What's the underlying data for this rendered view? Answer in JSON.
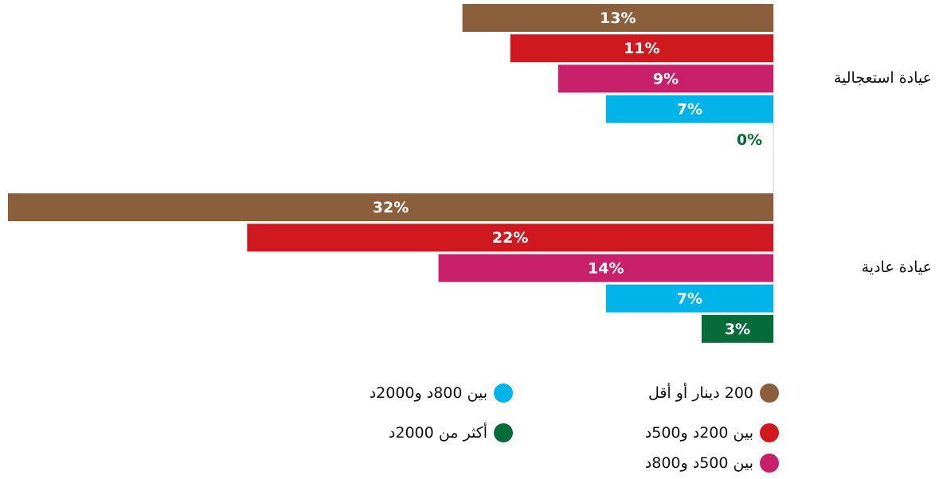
{
  "chart_data": {
    "type": "bar",
    "orientation": "horizontal",
    "categories": [
      "عيادة استعجالية",
      "عيادة عادية"
    ],
    "series": [
      {
        "name": "200 دينار أو أقل",
        "color": "#8b5e3c",
        "values": [
          13,
          32
        ],
        "value_labels": [
          "13%",
          "32%"
        ]
      },
      {
        "name": "بين 200د و500د",
        "color": "#d0181f",
        "values": [
          11,
          22
        ],
        "value_labels": [
          "11%",
          "22%"
        ]
      },
      {
        "name": "بين 500د و800د",
        "color": "#c9206b",
        "values": [
          9,
          14
        ],
        "value_labels": [
          "9%",
          "14%"
        ]
      },
      {
        "name": "بين 800د و2000د",
        "color": "#00b4ea",
        "values": [
          7,
          7
        ],
        "value_labels": [
          "7%",
          "7%"
        ]
      },
      {
        "name": "أكثر من 2000د",
        "color": "#046b3a",
        "values": [
          0,
          3
        ],
        "value_labels": [
          "0%",
          "3%"
        ]
      }
    ]
  }
}
